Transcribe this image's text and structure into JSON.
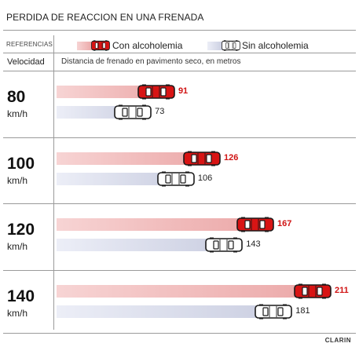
{
  "title": "PERDIDA DE REACCION EN UNA FRENADA",
  "legend": {
    "label": "REFERENCIAS",
    "with_alcohol": "Con alcoholemia",
    "without_alcohol": "Sin alcoholemia"
  },
  "columns": {
    "speed_header": "Velocidad",
    "distance_header": "Distancia de frenado en pavimento seco, en metros"
  },
  "credit": "CLARIN",
  "colors": {
    "alcohol_car": "#d81414",
    "sober_car": "#ffffff",
    "alcohol_bar": "#eba6a6",
    "sober_bar": "#c9cde0"
  },
  "chart_data": {
    "type": "bar",
    "orientation": "horizontal",
    "categories": [
      "80",
      "100",
      "120",
      "140"
    ],
    "category_unit": "km/h",
    "series": [
      {
        "name": "Con alcoholemia",
        "values": [
          91,
          126,
          167,
          211
        ]
      },
      {
        "name": "Sin alcoholemia",
        "values": [
          73,
          106,
          143,
          181
        ]
      }
    ],
    "xlabel": "Distancia de frenado en pavimento seco, en metros",
    "ylabel": "Velocidad",
    "title": "PERDIDA DE REACCION EN UNA FRENADA",
    "xlim": [
      0,
      211
    ]
  }
}
